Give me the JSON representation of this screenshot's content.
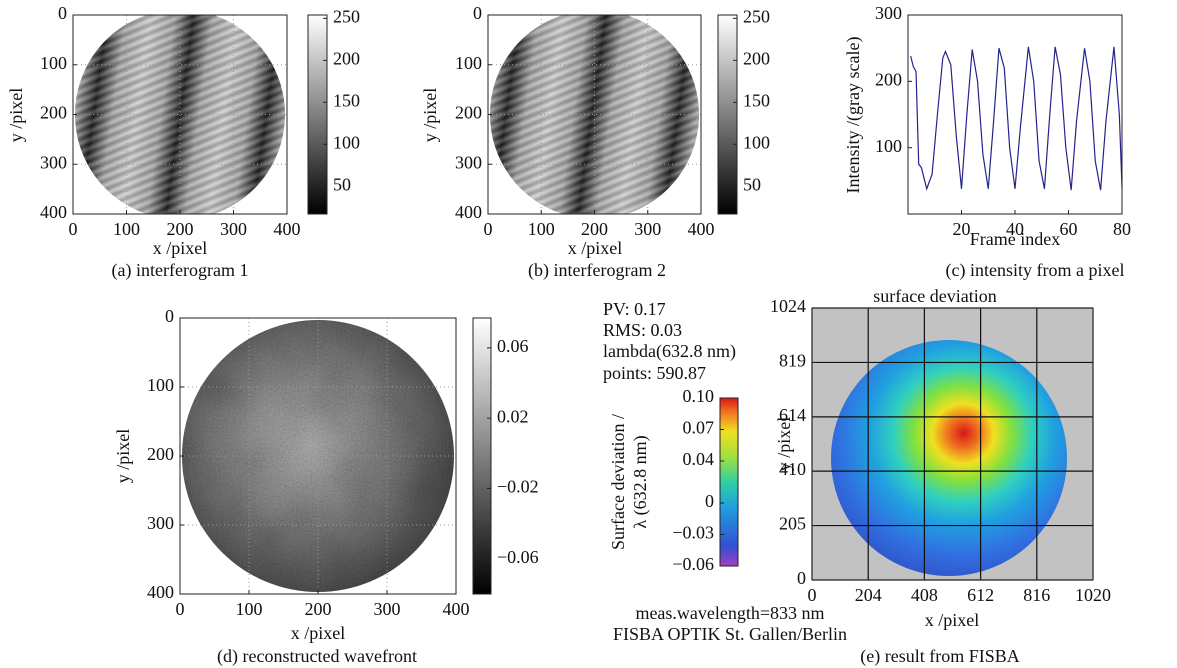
{
  "chart_data": [
    {
      "type": "image",
      "colormap": "gray",
      "caption": "(a) interferogram 1",
      "xlabel": "x /pixel",
      "ylabel": "y /pixel",
      "xlim": [
        0,
        400
      ],
      "ylim": [
        400,
        0
      ],
      "xticks": [
        0,
        100,
        200,
        300,
        400
      ],
      "yticks": [
        0,
        100,
        200,
        300,
        400
      ],
      "grid": true,
      "clim": [
        17,
        254
      ],
      "cticks": [
        50,
        100,
        150,
        200,
        250
      ]
    },
    {
      "type": "image",
      "colormap": "gray",
      "caption": "(b) interferogram 2",
      "xlabel": "x /pixel",
      "ylabel": "y /pixel",
      "xlim": [
        0,
        400
      ],
      "ylim": [
        400,
        0
      ],
      "xticks": [
        0,
        100,
        200,
        300,
        400
      ],
      "yticks": [
        0,
        100,
        200,
        300,
        400
      ],
      "grid": true,
      "clim": [
        17,
        254
      ],
      "cticks": [
        50,
        100,
        150,
        200,
        250
      ]
    },
    {
      "type": "line",
      "caption": "(c) intensity from a pixel",
      "xlabel": "Frame index",
      "ylabel": "Intensity /(gray scale)",
      "xlim": [
        0,
        80
      ],
      "ylim": [
        0,
        300
      ],
      "xticks": [
        20,
        40,
        60,
        80
      ],
      "yticks": [
        100,
        200,
        300
      ],
      "color": "#23238e",
      "x": [
        1,
        2,
        3,
        4,
        5,
        7,
        9,
        11,
        13,
        14,
        16,
        18,
        20,
        22,
        24,
        26,
        28,
        30,
        32,
        34,
        36,
        38,
        40,
        42,
        45,
        47,
        49,
        51,
        53,
        55,
        57,
        59,
        61,
        63,
        66,
        68,
        70,
        72,
        74,
        77,
        79,
        80
      ],
      "values": [
        238,
        222,
        215,
        75,
        70,
        38,
        60,
        150,
        235,
        245,
        225,
        120,
        38,
        150,
        248,
        200,
        90,
        38,
        140,
        250,
        220,
        100,
        38,
        130,
        252,
        200,
        80,
        38,
        150,
        252,
        210,
        100,
        36,
        140,
        250,
        200,
        80,
        36,
        140,
        252,
        150,
        40
      ]
    },
    {
      "type": "image",
      "colormap": "gray",
      "caption": "(d) reconstructed wavefront",
      "xlabel": "x /pixel",
      "ylabel": "y /pixel",
      "xlim": [
        0,
        400
      ],
      "ylim": [
        400,
        0
      ],
      "xticks": [
        0,
        100,
        200,
        300,
        400
      ],
      "yticks": [
        0,
        100,
        200,
        300,
        400
      ],
      "grid": true,
      "clim": [
        -0.08,
        0.077
      ],
      "cticks": [
        {
          "value": -0.06,
          "label": "−0.06"
        },
        {
          "value": -0.02,
          "label": "−0.02"
        },
        0.02,
        0.06
      ]
    },
    {
      "type": "image",
      "colormap": "jet",
      "title": "surface deviation",
      "caption": "(e) result from FISBA",
      "xlabel": "x /pixel",
      "ylabel": "y /pixel",
      "xlim": [
        0,
        1020
      ],
      "ylim": [
        0,
        1024
      ],
      "xticks": [
        0,
        204,
        408,
        612,
        816,
        1020
      ],
      "yticks": [
        0,
        205,
        410,
        614,
        819,
        1024
      ],
      "grid": true,
      "clim": [
        -0.06,
        0.1
      ],
      "cticks": [
        {
          "value": -0.06,
          "label": "−0.06"
        },
        {
          "value": -0.03,
          "label": "−0.03"
        },
        0,
        0.04,
        0.07,
        {
          "value": 0.1,
          "label": "0.10"
        }
      ],
      "clabel": [
        "Surface deviation /",
        "λ (632.8 nm)"
      ],
      "annotations": [
        "PV: 0.17",
        "RMS: 0.03",
        "lambda(632.8 nm)",
        "points: 590.87",
        "meas.wavelength=833 nm",
        "FISBA OPTIK St. Gallen/Berlin"
      ]
    }
  ]
}
